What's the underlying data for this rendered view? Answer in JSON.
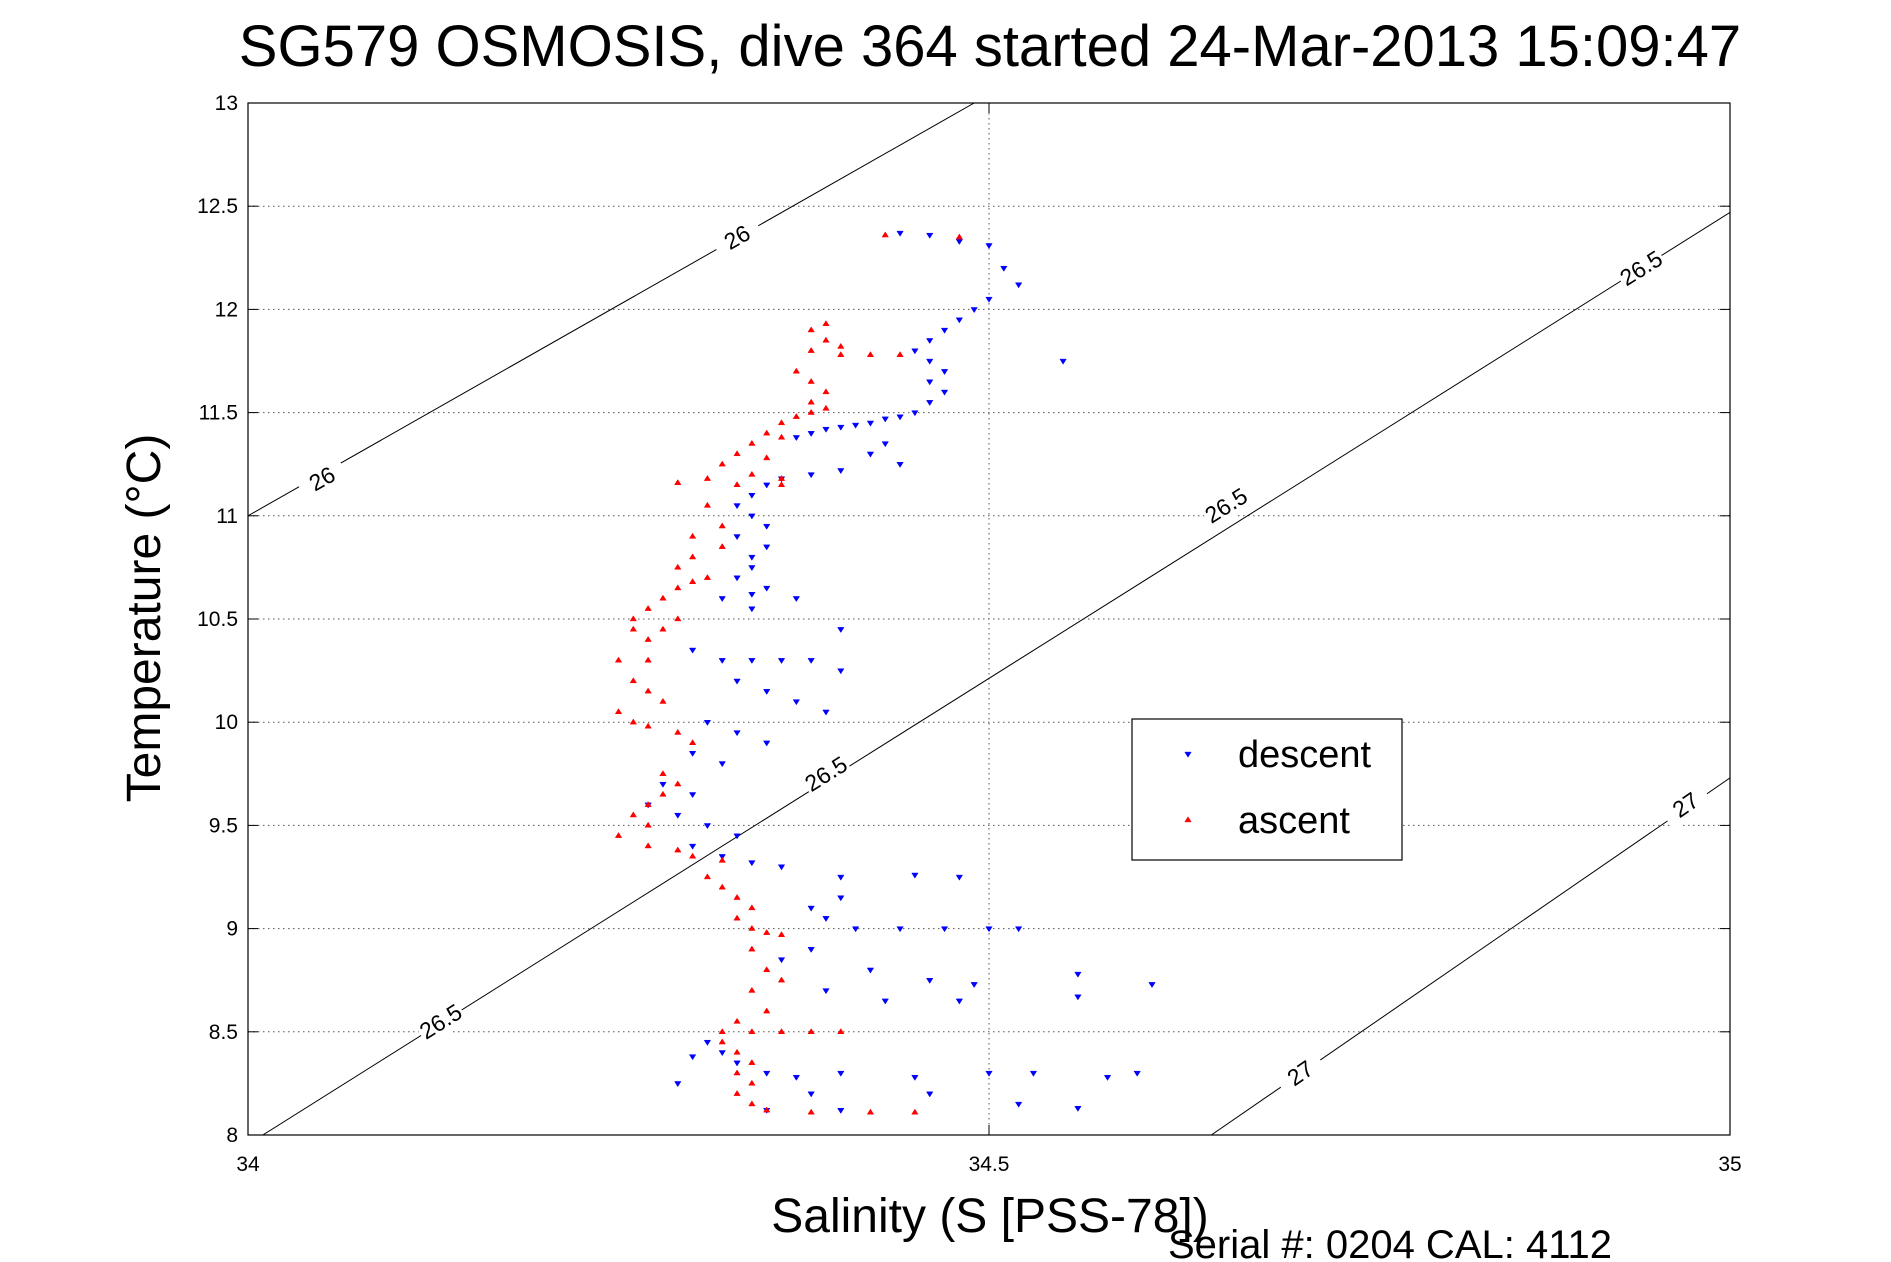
{
  "chart_data": {
    "type": "scatter",
    "title": "SG579 OSMOSIS, dive 364 started 24-Mar-2013 15:09:47",
    "xlabel": "Salinity (S [PSS-78])",
    "ylabel": "Temperature (°C)",
    "xlim": [
      34,
      35
    ],
    "ylim": [
      8,
      13
    ],
    "x_ticks": [
      34,
      34.5,
      35
    ],
    "x_tick_labels": [
      "34",
      "34.5",
      "35"
    ],
    "y_ticks": [
      8,
      8.5,
      9,
      9.5,
      10,
      10.5,
      11,
      11.5,
      12,
      12.5,
      13
    ],
    "y_tick_labels": [
      "8",
      "8.5",
      "9",
      "9.5",
      "10",
      "10.5",
      "11",
      "11.5",
      "12",
      "12.5",
      "13"
    ],
    "grid": true,
    "legend_position": "center-right",
    "density_contours": [
      {
        "level": "26",
        "line": [
          [
            34.0,
            11.0
          ],
          [
            34.49,
            13.0
          ]
        ],
        "labels": [
          [
            34.05,
            11.18
          ],
          [
            34.33,
            12.35
          ]
        ]
      },
      {
        "level": "26.5",
        "line": [
          [
            34.01,
            8.0
          ],
          [
            35.0,
            12.47
          ]
        ],
        "labels": [
          [
            34.13,
            8.55
          ],
          [
            34.39,
            9.75
          ],
          [
            34.66,
            11.05
          ],
          [
            34.94,
            12.2
          ]
        ]
      },
      {
        "level": "27",
        "line": [
          [
            34.65,
            8.0
          ],
          [
            35.0,
            9.73
          ]
        ],
        "labels": [
          [
            34.71,
            8.3
          ],
          [
            34.97,
            9.6
          ]
        ]
      }
    ],
    "series": [
      {
        "name": "descent",
        "color": "#0000ff",
        "marker": "triangle-down",
        "points": [
          [
            34.44,
            12.37
          ],
          [
            34.46,
            12.36
          ],
          [
            34.48,
            12.33
          ],
          [
            34.5,
            12.31
          ],
          [
            34.51,
            12.2
          ],
          [
            34.52,
            12.12
          ],
          [
            34.5,
            12.05
          ],
          [
            34.49,
            12.0
          ],
          [
            34.48,
            11.95
          ],
          [
            34.47,
            11.9
          ],
          [
            34.46,
            11.85
          ],
          [
            34.45,
            11.8
          ],
          [
            34.46,
            11.75
          ],
          [
            34.47,
            11.7
          ],
          [
            34.46,
            11.65
          ],
          [
            34.47,
            11.6
          ],
          [
            34.46,
            11.55
          ],
          [
            34.45,
            11.5
          ],
          [
            34.44,
            11.48
          ],
          [
            34.43,
            11.47
          ],
          [
            34.42,
            11.45
          ],
          [
            34.41,
            11.44
          ],
          [
            34.4,
            11.43
          ],
          [
            34.39,
            11.42
          ],
          [
            34.38,
            11.4
          ],
          [
            34.37,
            11.38
          ],
          [
            34.43,
            11.35
          ],
          [
            34.42,
            11.3
          ],
          [
            34.44,
            11.25
          ],
          [
            34.4,
            11.22
          ],
          [
            34.38,
            11.2
          ],
          [
            34.36,
            11.18
          ],
          [
            34.35,
            11.15
          ],
          [
            34.34,
            11.1
          ],
          [
            34.33,
            11.05
          ],
          [
            34.34,
            11.0
          ],
          [
            34.35,
            10.95
          ],
          [
            34.33,
            10.9
          ],
          [
            34.35,
            10.85
          ],
          [
            34.34,
            10.8
          ],
          [
            34.34,
            10.75
          ],
          [
            34.33,
            10.7
          ],
          [
            34.35,
            10.65
          ],
          [
            34.34,
            10.62
          ],
          [
            34.32,
            10.6
          ],
          [
            34.37,
            10.6
          ],
          [
            34.34,
            10.55
          ],
          [
            34.4,
            10.45
          ],
          [
            34.3,
            10.35
          ],
          [
            34.32,
            10.3
          ],
          [
            34.34,
            10.3
          ],
          [
            34.36,
            10.3
          ],
          [
            34.38,
            10.3
          ],
          [
            34.4,
            10.25
          ],
          [
            34.33,
            10.2
          ],
          [
            34.35,
            10.15
          ],
          [
            34.37,
            10.1
          ],
          [
            34.39,
            10.05
          ],
          [
            34.31,
            10.0
          ],
          [
            34.33,
            9.95
          ],
          [
            34.35,
            9.9
          ],
          [
            34.3,
            9.85
          ],
          [
            34.32,
            9.8
          ],
          [
            34.28,
            9.7
          ],
          [
            34.3,
            9.65
          ],
          [
            34.27,
            9.6
          ],
          [
            34.29,
            9.55
          ],
          [
            34.31,
            9.5
          ],
          [
            34.33,
            9.45
          ],
          [
            34.3,
            9.4
          ],
          [
            34.32,
            9.35
          ],
          [
            34.34,
            9.32
          ],
          [
            34.36,
            9.3
          ],
          [
            34.4,
            9.25
          ],
          [
            34.45,
            9.26
          ],
          [
            34.48,
            9.25
          ],
          [
            34.4,
            9.15
          ],
          [
            34.38,
            9.1
          ],
          [
            34.39,
            9.05
          ],
          [
            34.41,
            9.0
          ],
          [
            34.44,
            9.0
          ],
          [
            34.47,
            9.0
          ],
          [
            34.5,
            9.0
          ],
          [
            34.52,
            9.0
          ],
          [
            34.38,
            8.9
          ],
          [
            34.36,
            8.85
          ],
          [
            34.42,
            8.8
          ],
          [
            34.46,
            8.75
          ],
          [
            34.49,
            8.73
          ],
          [
            34.56,
            8.78
          ],
          [
            34.61,
            8.73
          ],
          [
            34.39,
            8.7
          ],
          [
            34.43,
            8.65
          ],
          [
            34.48,
            8.65
          ],
          [
            34.56,
            8.67
          ],
          [
            34.31,
            8.45
          ],
          [
            34.32,
            8.4
          ],
          [
            34.33,
            8.35
          ],
          [
            34.3,
            8.38
          ],
          [
            34.29,
            8.25
          ],
          [
            34.35,
            8.3
          ],
          [
            34.37,
            8.28
          ],
          [
            34.4,
            8.3
          ],
          [
            34.45,
            8.28
          ],
          [
            34.5,
            8.3
          ],
          [
            34.53,
            8.3
          ],
          [
            34.58,
            8.28
          ],
          [
            34.6,
            8.3
          ],
          [
            34.38,
            8.2
          ],
          [
            34.46,
            8.2
          ],
          [
            34.52,
            8.15
          ],
          [
            34.56,
            8.13
          ],
          [
            34.35,
            8.12
          ],
          [
            34.4,
            8.12
          ],
          [
            34.55,
            11.75
          ]
        ]
      },
      {
        "name": "ascent",
        "color": "#ff0000",
        "marker": "triangle-up",
        "points": [
          [
            34.43,
            12.36
          ],
          [
            34.48,
            12.35
          ],
          [
            34.39,
            11.93
          ],
          [
            34.38,
            11.9
          ],
          [
            34.39,
            11.85
          ],
          [
            34.4,
            11.82
          ],
          [
            34.38,
            11.8
          ],
          [
            34.4,
            11.78
          ],
          [
            34.42,
            11.78
          ],
          [
            34.44,
            11.78
          ],
          [
            34.37,
            11.7
          ],
          [
            34.38,
            11.65
          ],
          [
            34.39,
            11.6
          ],
          [
            34.38,
            11.55
          ],
          [
            34.39,
            11.52
          ],
          [
            34.38,
            11.5
          ],
          [
            34.37,
            11.48
          ],
          [
            34.36,
            11.45
          ],
          [
            34.35,
            11.4
          ],
          [
            34.34,
            11.35
          ],
          [
            34.36,
            11.38
          ],
          [
            34.33,
            11.3
          ],
          [
            34.35,
            11.28
          ],
          [
            34.32,
            11.25
          ],
          [
            34.34,
            11.2
          ],
          [
            34.36,
            11.18
          ],
          [
            34.31,
            11.18
          ],
          [
            34.29,
            11.16
          ],
          [
            34.33,
            11.15
          ],
          [
            34.36,
            11.15
          ],
          [
            34.31,
            11.05
          ],
          [
            34.32,
            10.95
          ],
          [
            34.3,
            10.9
          ],
          [
            34.32,
            10.85
          ],
          [
            34.3,
            10.8
          ],
          [
            34.29,
            10.75
          ],
          [
            34.31,
            10.7
          ],
          [
            34.3,
            10.68
          ],
          [
            34.29,
            10.65
          ],
          [
            34.28,
            10.6
          ],
          [
            34.27,
            10.55
          ],
          [
            34.26,
            10.5
          ],
          [
            34.29,
            10.5
          ],
          [
            34.28,
            10.45
          ],
          [
            34.26,
            10.45
          ],
          [
            34.27,
            10.4
          ],
          [
            34.25,
            10.3
          ],
          [
            34.27,
            10.3
          ],
          [
            34.26,
            10.2
          ],
          [
            34.27,
            10.15
          ],
          [
            34.28,
            10.1
          ],
          [
            34.25,
            10.05
          ],
          [
            34.26,
            10.0
          ],
          [
            34.27,
            9.98
          ],
          [
            34.29,
            9.95
          ],
          [
            34.3,
            9.9
          ],
          [
            34.28,
            9.75
          ],
          [
            34.29,
            9.7
          ],
          [
            34.28,
            9.65
          ],
          [
            34.27,
            9.6
          ],
          [
            34.26,
            9.55
          ],
          [
            34.27,
            9.5
          ],
          [
            34.25,
            9.45
          ],
          [
            34.27,
            9.4
          ],
          [
            34.29,
            9.38
          ],
          [
            34.3,
            9.35
          ],
          [
            34.32,
            9.33
          ],
          [
            34.31,
            9.25
          ],
          [
            34.32,
            9.2
          ],
          [
            34.33,
            9.15
          ],
          [
            34.34,
            9.1
          ],
          [
            34.33,
            9.05
          ],
          [
            34.34,
            9.0
          ],
          [
            34.35,
            8.98
          ],
          [
            34.36,
            8.97
          ],
          [
            34.34,
            8.9
          ],
          [
            34.35,
            8.8
          ],
          [
            34.36,
            8.75
          ],
          [
            34.34,
            8.7
          ],
          [
            34.35,
            8.6
          ],
          [
            34.33,
            8.55
          ],
          [
            34.34,
            8.5
          ],
          [
            34.32,
            8.5
          ],
          [
            34.36,
            8.5
          ],
          [
            34.38,
            8.5
          ],
          [
            34.4,
            8.5
          ],
          [
            34.32,
            8.45
          ],
          [
            34.33,
            8.4
          ],
          [
            34.34,
            8.35
          ],
          [
            34.33,
            8.3
          ],
          [
            34.34,
            8.25
          ],
          [
            34.33,
            8.2
          ],
          [
            34.34,
            8.15
          ],
          [
            34.35,
            8.12
          ],
          [
            34.38,
            8.11
          ],
          [
            34.42,
            8.11
          ],
          [
            34.45,
            8.11
          ]
        ]
      }
    ]
  },
  "footer": "Serial #: 0204  CAL: 4112"
}
